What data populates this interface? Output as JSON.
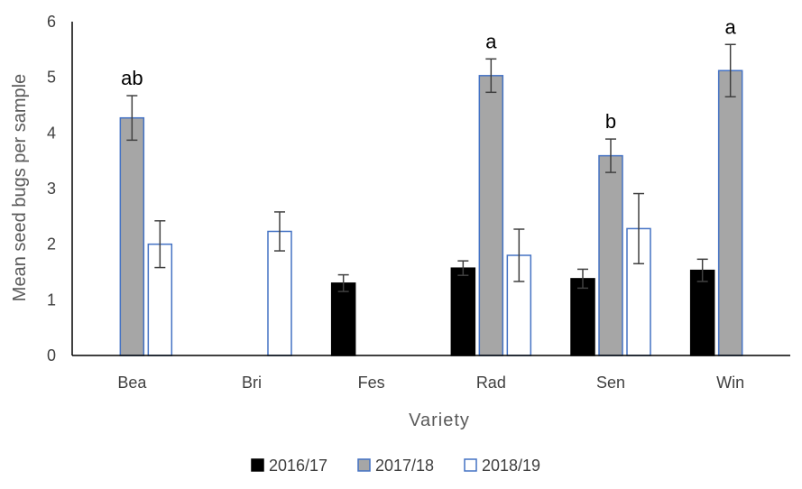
{
  "chart_data": {
    "type": "bar",
    "title": "",
    "xlabel": "Variety",
    "ylabel": "Mean seed bugs per sample",
    "ylim": [
      0,
      6
    ],
    "yticks": [
      0,
      1,
      2,
      3,
      4,
      5,
      6
    ],
    "categories": [
      "Bea",
      "Bri",
      "Fes",
      "Rad",
      "Sen",
      "Win"
    ],
    "series": [
      {
        "name": "2016/17",
        "fill": "#000000",
        "stroke": "#000000",
        "values": [
          null,
          null,
          1.3,
          1.57,
          1.38,
          1.53
        ],
        "errors": [
          null,
          null,
          0.15,
          0.13,
          0.17,
          0.2
        ]
      },
      {
        "name": "2017/18",
        "fill": "#a6a6a6",
        "stroke": "#4472c4",
        "values": [
          4.27,
          null,
          null,
          5.03,
          3.59,
          5.12
        ],
        "errors": [
          0.4,
          null,
          null,
          0.3,
          0.3,
          0.47
        ]
      },
      {
        "name": "2018/19",
        "fill": "#ffffff",
        "stroke": "#4472c4",
        "values": [
          2.0,
          2.23,
          null,
          1.8,
          2.28,
          null
        ],
        "errors": [
          0.42,
          0.35,
          null,
          0.47,
          0.63,
          null
        ]
      }
    ],
    "annotations": [
      {
        "category": "Bea",
        "series": "2017/18",
        "text": "ab"
      },
      {
        "category": "Rad",
        "series": "2017/18",
        "text": "a"
      },
      {
        "category": "Sen",
        "series": "2017/18",
        "text": "b"
      },
      {
        "category": "Win",
        "series": "2017/18",
        "text": "a"
      }
    ],
    "legend_position": "bottom",
    "grid": false,
    "axis_color": "#000000",
    "errorbar_color": "#404040"
  }
}
